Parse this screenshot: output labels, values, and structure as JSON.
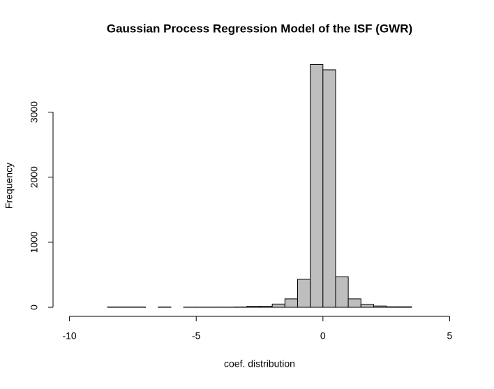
{
  "chart_data": {
    "type": "histogram",
    "title": "Gaussian Process Regression Model of the ISF (GWR)",
    "x_label": "coef. distribution",
    "y_label": "Frequency",
    "bins": [
      -8.5,
      -8,
      -7.5,
      -7,
      -6.5,
      -6,
      -5.5,
      -5,
      -4.5,
      -4,
      -3.5,
      -3,
      -2.5,
      -2,
      -1.5,
      -1,
      -0.5,
      0,
      0.5,
      1,
      1.5,
      2,
      2.5,
      3,
      3.5,
      4,
      4.5,
      5,
      5.5
    ],
    "values": [
      5,
      5,
      5,
      0,
      5,
      0,
      3,
      3,
      3,
      3,
      5,
      15,
      15,
      50,
      130,
      430,
      3730,
      3650,
      470,
      130,
      45,
      20,
      8,
      8,
      0,
      0,
      0,
      0
    ],
    "color": "#bebebe",
    "xlim": [
      -10.65,
      6.2
    ],
    "ylim": [
      -150,
      3950
    ],
    "xticks": [
      -10,
      -5,
      0,
      5
    ],
    "yticks": [
      0,
      1000,
      2000,
      3000
    ]
  }
}
